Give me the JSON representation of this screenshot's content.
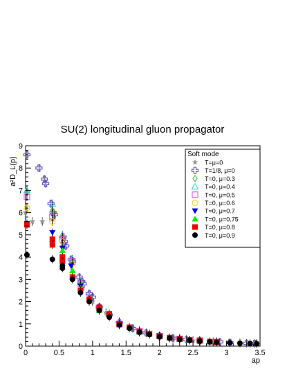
{
  "chart_data": {
    "type": "scatter",
    "title": "SU(2) longitudinal gluon propagator",
    "xlabel": "ap",
    "ylabel": "a²D_L(p)",
    "xlim": [
      0,
      3.5
    ],
    "ylim": [
      0,
      9
    ],
    "xticks": [
      "0",
      "0.5",
      "1",
      "1.5",
      "2",
      "2.5",
      "3",
      "3.5"
    ],
    "yticks": [
      "0",
      "1",
      "2",
      "3",
      "4",
      "5",
      "6",
      "7",
      "8",
      "9"
    ],
    "grid": false,
    "legend": {
      "title": "Soft mode",
      "placement": "top-right"
    },
    "series": [
      {
        "name": "T=μ=0",
        "marker": "star",
        "color": "#999999",
        "x": [
          0,
          0.1,
          0.25,
          0.4,
          0.55,
          0.7,
          0.85,
          1.0,
          1.2,
          1.4,
          1.6,
          1.8,
          2.0,
          2.2,
          2.5,
          2.8,
          3.2,
          3.45
        ],
        "y": [
          6.0,
          5.6,
          5.6,
          5.7,
          4.6,
          3.8,
          2.6,
          2.0,
          1.5,
          1.1,
          0.8,
          0.6,
          0.45,
          0.35,
          0.25,
          0.2,
          0.15,
          0.12
        ]
      },
      {
        "name": "T=1/8, μ=0",
        "marker": "open-cross",
        "color": "#6655cc",
        "x": [
          0.02,
          0.2,
          0.28,
          0.3,
          0.38,
          0.41,
          0.43,
          0.56,
          0.58,
          0.6,
          0.68,
          0.7,
          0.8,
          0.84,
          0.86,
          0.95,
          1.0,
          1.1,
          1.25,
          1.4,
          1.6,
          1.8,
          2.0,
          2.2,
          2.4,
          2.6,
          2.9,
          3.05,
          3.3,
          3.42
        ],
        "y": [
          8.6,
          8.0,
          7.5,
          7.3,
          6.4,
          6.0,
          5.9,
          4.9,
          4.7,
          4.5,
          3.9,
          3.8,
          3.1,
          2.9,
          2.8,
          2.35,
          2.2,
          1.75,
          1.4,
          1.05,
          0.8,
          0.6,
          0.45,
          0.36,
          0.3,
          0.24,
          0.19,
          0.16,
          0.13,
          0.12
        ]
      },
      {
        "name": "T=0, μ=0.3",
        "marker": "open-diamond",
        "color": "#33bb33",
        "x": [
          0.02,
          0.4,
          0.55,
          0.7,
          0.82,
          1.1,
          1.4,
          1.7,
          2.0,
          2.3,
          2.6,
          2.85
        ],
        "y": [
          6.9,
          6.1,
          4.9,
          3.9,
          2.8,
          1.7,
          1.0,
          0.68,
          0.46,
          0.33,
          0.25,
          0.2
        ]
      },
      {
        "name": "T=0, μ=0.4",
        "marker": "open-triangle-up",
        "color": "#33cccc",
        "x": [
          0.02,
          0.4,
          0.55,
          0.7,
          0.82,
          1.1,
          1.4,
          1.7,
          2.0,
          2.3,
          2.6,
          2.85
        ],
        "y": [
          7.0,
          6.4,
          5.0,
          3.9,
          2.9,
          1.75,
          1.05,
          0.7,
          0.47,
          0.34,
          0.26,
          0.2
        ]
      },
      {
        "name": "T=0, μ=0.5",
        "marker": "open-square",
        "color": "#dd44dd",
        "x": [
          0.02,
          0.4,
          0.55,
          0.7,
          0.82,
          1.1,
          1.4,
          1.7,
          2.0,
          2.3,
          2.6,
          2.85
        ],
        "y": [
          6.7,
          5.8,
          4.8,
          3.8,
          2.8,
          1.7,
          1.0,
          0.67,
          0.45,
          0.33,
          0.25,
          0.19
        ]
      },
      {
        "name": "T=0, μ=0.6",
        "marker": "open-circle",
        "color": "#f0d000",
        "x": [
          0.02,
          0.4,
          0.55,
          0.7,
          0.82,
          1.1,
          1.4,
          1.7,
          2.0,
          2.3,
          2.6,
          2.85
        ],
        "y": [
          6.2,
          5.6,
          4.7,
          3.7,
          2.7,
          1.65,
          0.98,
          0.65,
          0.44,
          0.32,
          0.24,
          0.19
        ]
      },
      {
        "name": "T=0, μ=0.7",
        "marker": "triangle-down",
        "color": "#0000ee",
        "x": [
          0.02,
          0.4,
          0.55,
          0.68,
          0.82,
          1.1,
          1.4,
          1.7,
          2.0,
          2.3,
          2.6,
          2.85
        ],
        "y": [
          5.5,
          5.1,
          4.4,
          3.6,
          2.7,
          1.6,
          0.97,
          0.64,
          0.43,
          0.32,
          0.24,
          0.19
        ]
      },
      {
        "name": "T=0, μ=0.75",
        "marker": "triangle-up",
        "color": "#00ee00",
        "x": [
          0.02,
          0.4,
          0.55,
          0.7,
          0.82,
          1.1,
          1.4,
          1.7,
          2.0,
          2.3,
          2.6,
          2.85
        ],
        "y": [
          5.5,
          4.8,
          4.3,
          3.4,
          2.6,
          1.6,
          0.95,
          0.63,
          0.43,
          0.32,
          0.24,
          0.18
        ]
      },
      {
        "name": "T=0, μ=0.8",
        "marker": "square",
        "color": "#ee0000",
        "x": [
          0.02,
          0.4,
          0.4,
          0.55,
          0.55,
          0.7,
          0.82,
          0.95,
          1.1,
          1.25,
          1.4,
          1.55,
          1.7,
          1.85,
          2.0,
          2.15,
          2.3,
          2.45,
          2.6,
          2.75,
          2.85
        ],
        "y": [
          5.45,
          4.8,
          4.55,
          4.0,
          3.8,
          3.1,
          2.5,
          2.1,
          1.75,
          1.45,
          1.0,
          0.85,
          0.65,
          0.55,
          0.45,
          0.38,
          0.32,
          0.28,
          0.24,
          0.2,
          0.18
        ]
      },
      {
        "name": "T=0, μ=0.9",
        "marker": "circle",
        "color": "#000000",
        "x": [
          0.02,
          0.4,
          0.55,
          0.55,
          0.7,
          0.82,
          0.95,
          1.1,
          1.25,
          1.4,
          1.55,
          1.7,
          1.85,
          2.0,
          2.15,
          2.3,
          2.45,
          2.6,
          2.75,
          2.85,
          3.05,
          3.2,
          3.35,
          3.45
        ],
        "y": [
          4.1,
          3.9,
          3.6,
          3.5,
          3.0,
          2.4,
          2.0,
          1.6,
          1.3,
          0.95,
          0.8,
          0.62,
          0.52,
          0.42,
          0.36,
          0.3,
          0.26,
          0.22,
          0.19,
          0.17,
          0.15,
          0.13,
          0.12,
          0.11
        ]
      }
    ]
  }
}
